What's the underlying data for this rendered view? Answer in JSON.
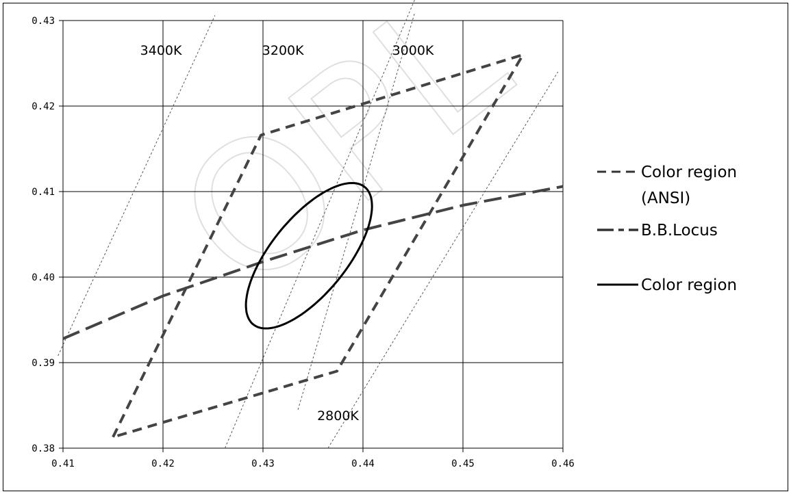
{
  "chart_data": {
    "type": "line",
    "xlim": [
      0.41,
      0.46
    ],
    "ylim": [
      0.38,
      0.43
    ],
    "x_ticks": [
      "0.41",
      "0.42",
      "0.43",
      "0.44",
      "0.45",
      "0.46"
    ],
    "y_ticks": [
      "0.38",
      "0.39",
      "0.40",
      "0.41",
      "0.42",
      "0.43"
    ],
    "grid": true,
    "legend_position": "right",
    "cct_lines": [
      {
        "label": "3400K",
        "points": [
          [
            0.4095,
            0.3908
          ],
          [
            0.4252,
            0.4306
          ]
        ]
      },
      {
        "label": "3200K",
        "points": [
          [
            0.4262,
            0.38
          ],
          [
            0.4452,
            0.4325
          ]
        ]
      },
      {
        "label": "3000K",
        "points": [
          [
            0.4335,
            0.3845
          ],
          [
            0.4452,
            0.431
          ]
        ]
      },
      {
        "label": "2800K",
        "points": [
          [
            0.4365,
            0.38
          ],
          [
            0.4595,
            0.424
          ]
        ]
      }
    ],
    "cct_label_positions": [
      {
        "label": "3400K",
        "at": [
          0.4198,
          0.426
        ]
      },
      {
        "label": "3200K",
        "at": [
          0.432,
          0.426
        ]
      },
      {
        "label": "3000K",
        "at": [
          0.445,
          0.426
        ]
      },
      {
        "label": "2800K",
        "at": [
          0.4375,
          0.3833
        ]
      }
    ],
    "series": [
      {
        "name": "Color region (ANSI)",
        "style": "short-dash",
        "points": [
          [
            0.415,
            0.3813
          ],
          [
            0.4298,
            0.4166
          ],
          [
            0.456,
            0.426
          ],
          [
            0.4374,
            0.389
          ],
          [
            0.415,
            0.3813
          ]
        ]
      },
      {
        "name": "B.B.Locus",
        "style": "long-dash",
        "points": [
          [
            0.41,
            0.3928
          ],
          [
            0.42,
            0.3978
          ],
          [
            0.43,
            0.4018
          ],
          [
            0.44,
            0.4055
          ],
          [
            0.45,
            0.4084
          ],
          [
            0.46,
            0.4106
          ]
        ]
      },
      {
        "name": "Color region",
        "style": "solid",
        "ellipse": {
          "center": [
            0.4346,
            0.4025
          ],
          "semi_axis_a": 0.0098,
          "semi_axis_b": 0.004,
          "angle_deg": 57
        }
      }
    ],
    "legend_lines": [
      "Color region",
      "(ANSI)",
      "B.B.Locus",
      "Color region"
    ],
    "watermark": "OPL"
  }
}
